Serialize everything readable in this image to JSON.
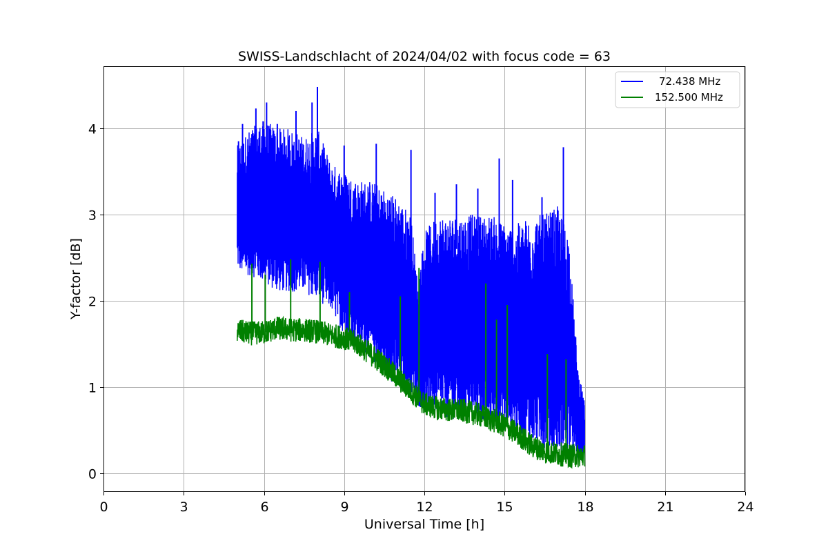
{
  "chart_data": {
    "type": "line",
    "title": "SWISS-Landschlacht of 2024/04/02 with focus code = 63",
    "xlabel": "Universal Time [h]",
    "ylabel": "Y-factor [dB]",
    "xlim": [
      0,
      24
    ],
    "ylim": [
      -0.22,
      4.72
    ],
    "xticks": [
      0,
      3,
      6,
      9,
      12,
      15,
      18,
      21,
      24
    ],
    "yticks": [
      0,
      1,
      2,
      3,
      4
    ],
    "grid": true,
    "legend_position": "top-right",
    "series": [
      {
        "name": "72.438 MHz",
        "color": "#0000ff",
        "x": [
          5.0,
          5.25,
          5.5,
          6.0,
          6.5,
          7.0,
          7.5,
          8.0,
          8.5,
          9.0,
          9.5,
          10.0,
          10.5,
          11.0,
          11.5,
          11.75,
          12.0,
          12.5,
          13.0,
          13.5,
          14.0,
          14.5,
          15.0,
          15.5,
          16.0,
          16.5,
          17.0,
          17.4,
          17.5,
          17.75,
          18.0
        ],
        "low": [
          2.3,
          2.2,
          2.2,
          2.1,
          2.0,
          2.0,
          2.0,
          1.9,
          1.8,
          1.5,
          1.4,
          1.2,
          1.0,
          0.9,
          0.8,
          0.7,
          0.6,
          0.55,
          0.5,
          0.5,
          0.5,
          0.45,
          0.4,
          0.3,
          0.2,
          0.15,
          0.1,
          0.1,
          0.1,
          0.1,
          0.1
        ],
        "high": [
          3.8,
          3.9,
          4.0,
          4.1,
          4.0,
          4.0,
          3.9,
          4.0,
          3.6,
          3.5,
          3.4,
          3.4,
          3.3,
          3.2,
          3.0,
          2.2,
          2.8,
          3.0,
          3.0,
          3.0,
          3.0,
          3.0,
          2.9,
          2.9,
          3.0,
          3.0,
          3.1,
          2.8,
          2.3,
          1.2,
          0.8
        ],
        "peaks": [
          {
            "x": 5.05,
            "y": 3.85
          },
          {
            "x": 5.2,
            "y": 4.05
          },
          {
            "x": 5.7,
            "y": 4.23
          },
          {
            "x": 6.1,
            "y": 4.3
          },
          {
            "x": 6.5,
            "y": 4.05
          },
          {
            "x": 7.2,
            "y": 4.2
          },
          {
            "x": 7.8,
            "y": 4.3
          },
          {
            "x": 8.0,
            "y": 4.48
          },
          {
            "x": 9.0,
            "y": 3.8
          },
          {
            "x": 10.2,
            "y": 3.82
          },
          {
            "x": 11.5,
            "y": 3.75
          },
          {
            "x": 12.4,
            "y": 3.25
          },
          {
            "x": 13.2,
            "y": 3.35
          },
          {
            "x": 14.0,
            "y": 3.3
          },
          {
            "x": 14.8,
            "y": 3.65
          },
          {
            "x": 15.3,
            "y": 3.4
          },
          {
            "x": 16.4,
            "y": 3.2
          },
          {
            "x": 17.2,
            "y": 3.78
          }
        ]
      },
      {
        "name": "152.500 MHz",
        "color": "#008000",
        "x": [
          5.0,
          5.5,
          6.0,
          6.5,
          7.0,
          7.5,
          8.0,
          8.5,
          9.0,
          9.5,
          10.0,
          10.5,
          11.0,
          11.5,
          12.0,
          12.5,
          13.0,
          13.5,
          14.0,
          14.5,
          15.0,
          15.5,
          16.0,
          16.5,
          17.0,
          17.5,
          18.0
        ],
        "y": [
          1.65,
          1.62,
          1.63,
          1.68,
          1.66,
          1.66,
          1.64,
          1.6,
          1.57,
          1.5,
          1.38,
          1.25,
          1.1,
          0.95,
          0.8,
          0.75,
          0.73,
          0.72,
          0.68,
          0.62,
          0.55,
          0.45,
          0.32,
          0.25,
          0.22,
          0.2,
          0.2
        ],
        "spikes": [
          {
            "x": 5.55,
            "y": 2.43
          },
          {
            "x": 6.05,
            "y": 2.3
          },
          {
            "x": 7.0,
            "y": 2.48
          },
          {
            "x": 8.1,
            "y": 2.45
          },
          {
            "x": 9.2,
            "y": 2.1
          },
          {
            "x": 11.1,
            "y": 2.05
          },
          {
            "x": 11.8,
            "y": 2.38
          },
          {
            "x": 14.3,
            "y": 2.2
          },
          {
            "x": 14.7,
            "y": 1.78
          },
          {
            "x": 15.1,
            "y": 1.95
          },
          {
            "x": 16.6,
            "y": 1.38
          },
          {
            "x": 17.3,
            "y": 1.32
          }
        ]
      }
    ]
  }
}
